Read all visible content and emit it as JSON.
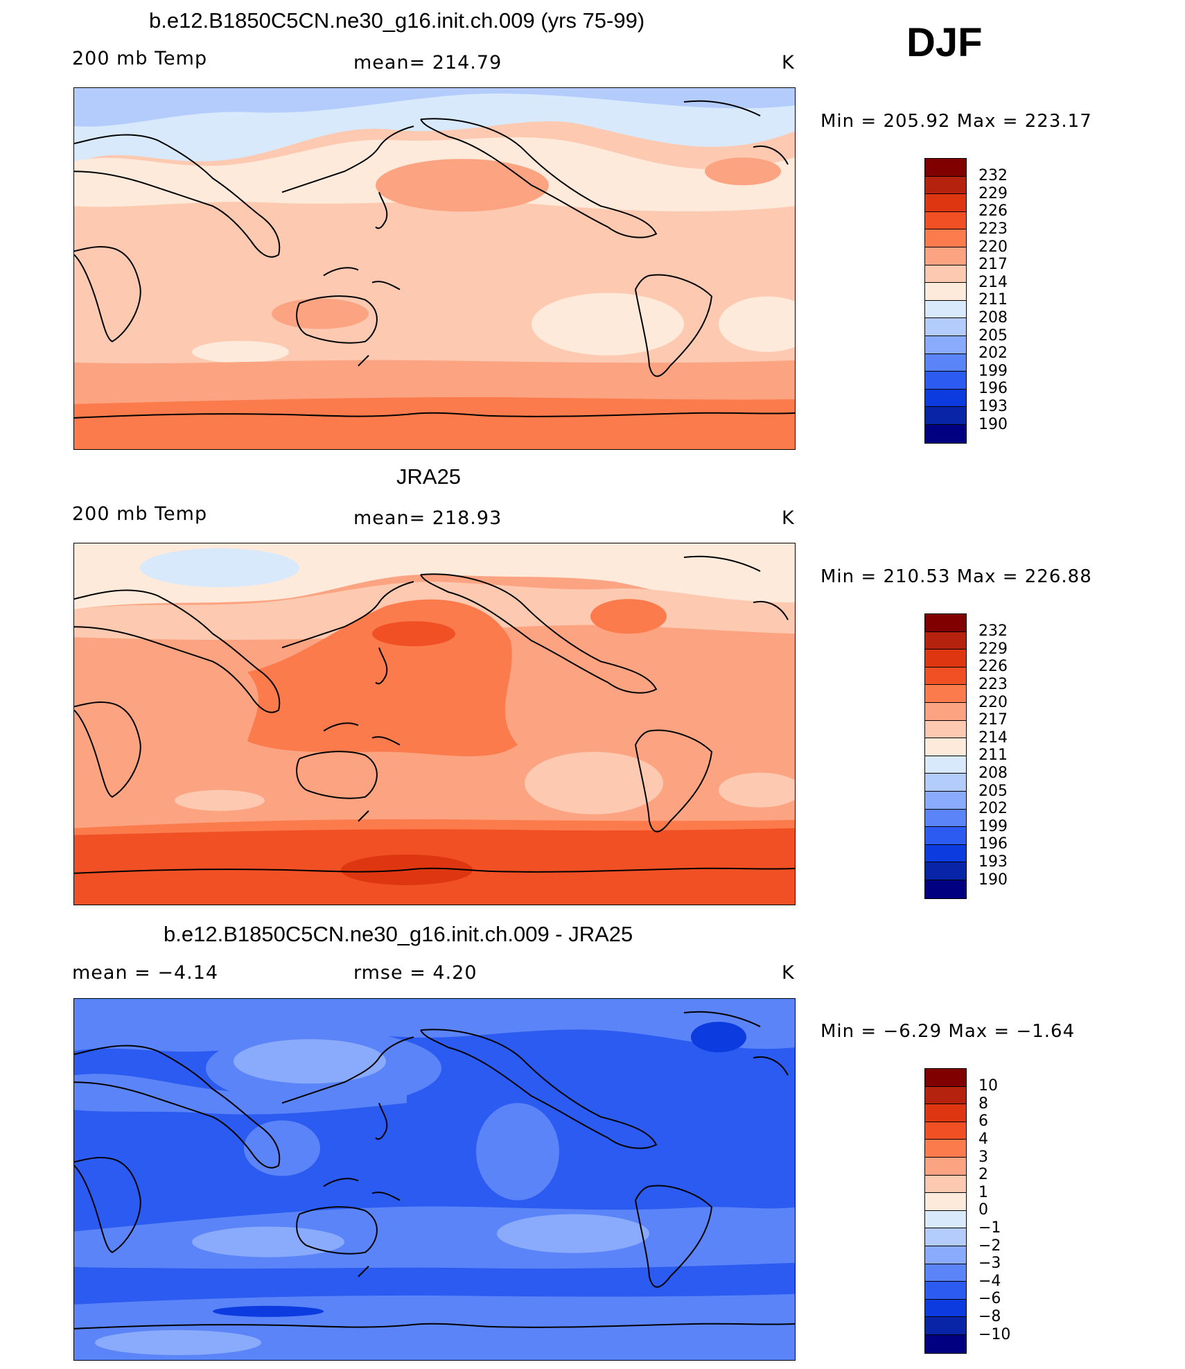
{
  "season": "DJF",
  "chart_data": [
    {
      "type": "heatmap",
      "title": "b.e12.B1850C5CN.ne30_g16.init.ch.009 (yrs 75-99)",
      "left_label": "200 mb Temp",
      "center_label": "mean= 214.79",
      "units": "K",
      "minmax": "Min = 205.92 Max = 223.17",
      "colorbar_ticks": [
        "232",
        "229",
        "226",
        "223",
        "220",
        "217",
        "214",
        "211",
        "208",
        "205",
        "202",
        "199",
        "196",
        "193",
        "190"
      ]
    },
    {
      "type": "heatmap",
      "title": "JRA25",
      "left_label": "200 mb Temp",
      "center_label": "mean= 218.93",
      "units": "K",
      "minmax": "Min = 210.53 Max = 226.88",
      "colorbar_ticks": [
        "232",
        "229",
        "226",
        "223",
        "220",
        "217",
        "214",
        "211",
        "208",
        "205",
        "202",
        "199",
        "196",
        "193",
        "190"
      ]
    },
    {
      "type": "heatmap",
      "title": "b.e12.B1850C5CN.ne30_g16.init.ch.009 - JRA25",
      "left_label": "mean =   −4.14",
      "center_label": "rmse =    4.20",
      "units": "K",
      "minmax": "Min =   −6.29 Max =   −1.64",
      "colorbar_ticks": [
        "10",
        "8",
        "6",
        "4",
        "3",
        "2",
        "1",
        "0",
        "−1",
        "−2",
        "−3",
        "−4",
        "−6",
        "−8",
        "−10"
      ]
    }
  ],
  "colors": {
    "palette": [
      "#800000",
      "#b5220e",
      "#dd3610",
      "#f05024",
      "#fb7b4c",
      "#fca482",
      "#fdcab1",
      "#feeada",
      "#d7e9fb",
      "#b3ccfc",
      "#8aaafb",
      "#5a84f7",
      "#2b5bf0",
      "#0c3be0",
      "#0825a8",
      "#000080"
    ]
  }
}
